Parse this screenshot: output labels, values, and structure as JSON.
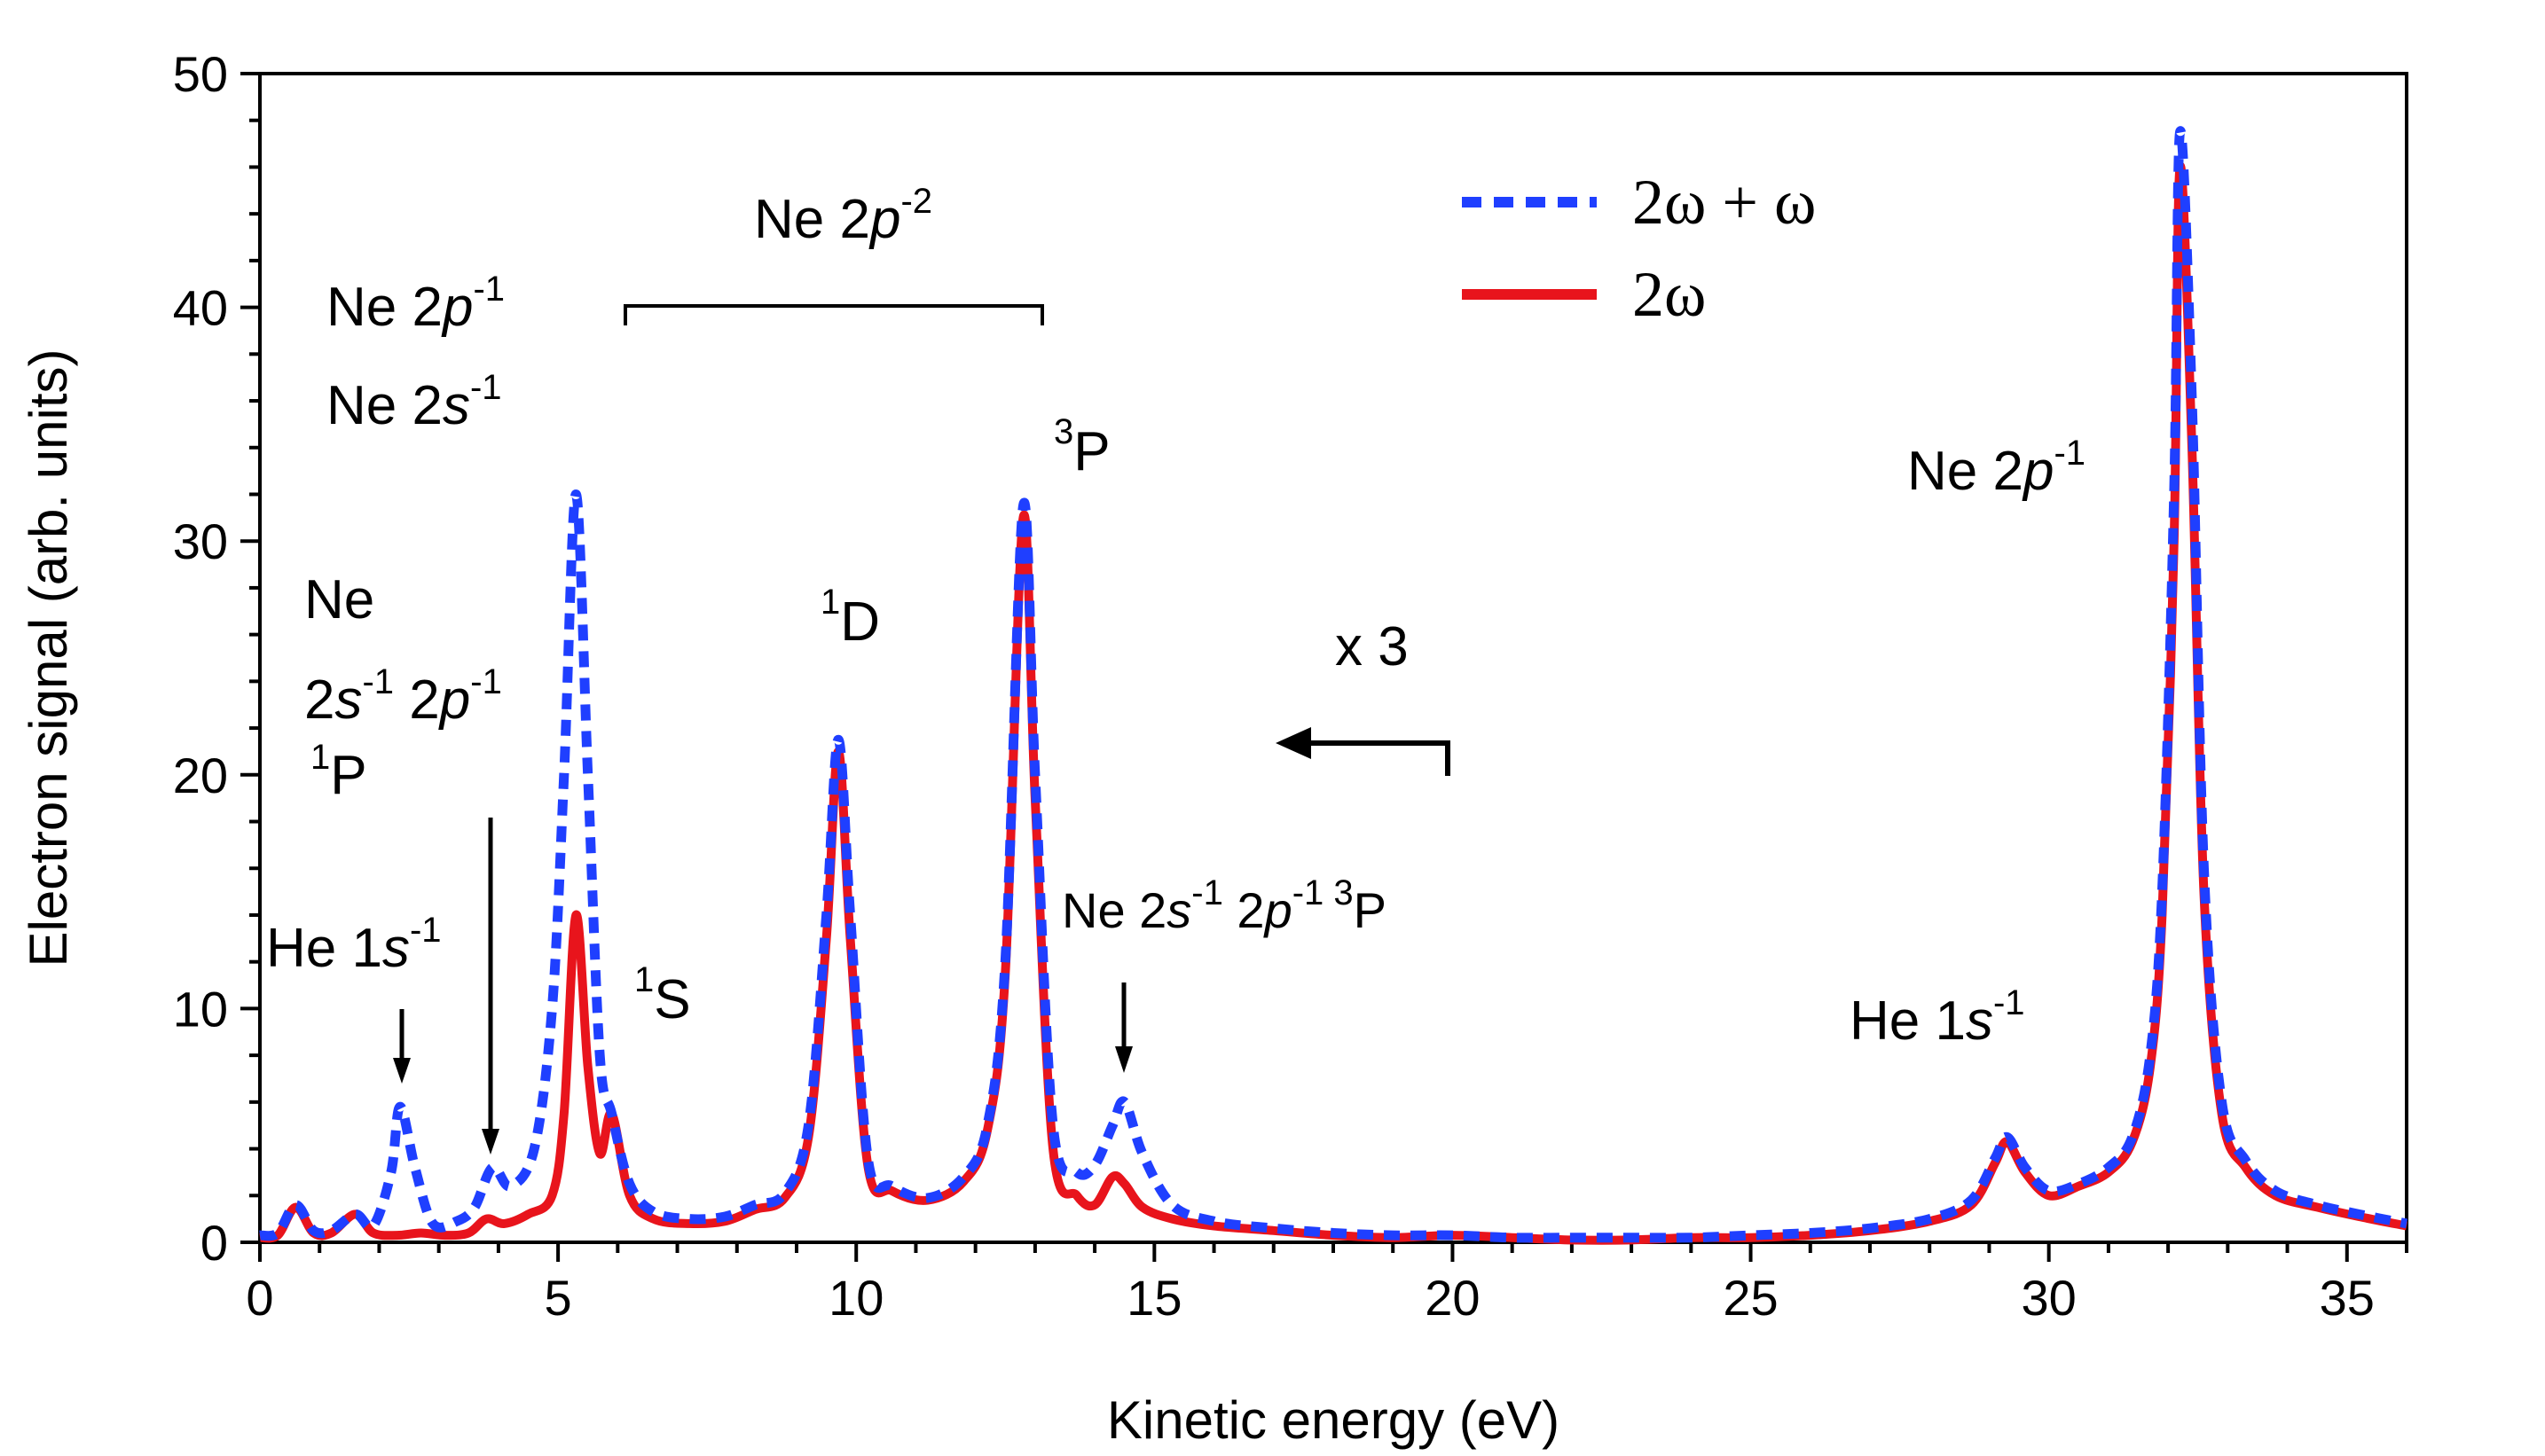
{
  "chart_data": {
    "type": "line",
    "title": "",
    "xlabel": "Kinetic energy (eV)",
    "ylabel": "Electron signal (arb. units)",
    "xlim": [
      0,
      36
    ],
    "ylim": [
      0,
      50
    ],
    "xticks": [
      0,
      5,
      10,
      15,
      20,
      25,
      30,
      35
    ],
    "yticks": [
      0,
      10,
      20,
      30,
      40,
      50
    ],
    "grid": false,
    "legend_position": "top-right",
    "series": [
      {
        "name": "2ω + ω",
        "color": "#1f3fff",
        "style": "dashed",
        "x": [
          0,
          0.3,
          0.6,
          0.9,
          1.2,
          1.6,
          1.9,
          2.2,
          2.35,
          2.6,
          2.9,
          3.3,
          3.6,
          3.9,
          4.2,
          4.6,
          4.9,
          5.1,
          5.3,
          5.5,
          5.7,
          5.9,
          6.2,
          6.6,
          7.2,
          7.8,
          8.3,
          8.8,
          9.2,
          9.5,
          9.7,
          9.9,
          10.2,
          10.6,
          11.2,
          11.8,
          12.2,
          12.5,
          12.8,
          13.0,
          13.3,
          13.7,
          14.0,
          14.3,
          14.5,
          14.8,
          15.3,
          16.0,
          17.0,
          18.0,
          19.0,
          20.0,
          21.0,
          22.0,
          23.0,
          24.0,
          25.0,
          26.0,
          27.0,
          28.0,
          28.7,
          29.1,
          29.3,
          29.6,
          30.0,
          30.5,
          31.0,
          31.4,
          31.7,
          31.9,
          32.1,
          32.2,
          32.4,
          32.6,
          32.9,
          33.3,
          33.8,
          34.5,
          35.2,
          36.0
        ],
        "y": [
          0.3,
          0.4,
          1.6,
          0.5,
          0.5,
          1.2,
          0.7,
          3.0,
          5.8,
          3.2,
          0.8,
          0.9,
          1.5,
          3.2,
          2.4,
          4.0,
          10.0,
          20.0,
          32.0,
          20.0,
          8.0,
          5.5,
          2.5,
          1.3,
          1.0,
          1.1,
          1.6,
          2.1,
          5.0,
          14.0,
          21.5,
          14.0,
          3.5,
          2.4,
          1.9,
          2.8,
          5.0,
          12.0,
          31.5,
          20.0,
          5.0,
          3.0,
          3.3,
          5.0,
          6.0,
          3.8,
          1.6,
          0.9,
          0.6,
          0.4,
          0.3,
          0.3,
          0.2,
          0.2,
          0.2,
          0.2,
          0.3,
          0.4,
          0.6,
          1.0,
          1.8,
          3.6,
          4.5,
          3.2,
          2.2,
          2.5,
          3.2,
          4.5,
          8.0,
          15.0,
          32.0,
          47.5,
          36.0,
          16.0,
          6.0,
          3.5,
          2.2,
          1.6,
          1.2,
          0.8
        ]
      },
      {
        "name": "2ω",
        "color": "#e8141c",
        "style": "solid",
        "x": [
          0,
          0.3,
          0.6,
          0.9,
          1.2,
          1.6,
          1.9,
          2.3,
          2.7,
          3.1,
          3.5,
          3.8,
          4.1,
          4.5,
          4.9,
          5.1,
          5.3,
          5.5,
          5.7,
          5.9,
          6.2,
          6.6,
          7.2,
          7.8,
          8.3,
          8.8,
          9.2,
          9.5,
          9.7,
          9.9,
          10.2,
          10.6,
          11.2,
          11.8,
          12.2,
          12.5,
          12.8,
          13.0,
          13.3,
          13.7,
          14.0,
          14.3,
          14.5,
          14.8,
          15.3,
          16.0,
          17.0,
          18.0,
          19.0,
          20.0,
          21.0,
          22.0,
          23.0,
          24.0,
          25.0,
          26.0,
          27.0,
          28.0,
          28.7,
          29.1,
          29.3,
          29.6,
          30.0,
          30.5,
          31.0,
          31.4,
          31.7,
          31.9,
          32.1,
          32.2,
          32.4,
          32.6,
          32.9,
          33.3,
          33.8,
          34.5,
          35.2,
          36.0
        ],
        "y": [
          0.2,
          0.3,
          1.5,
          0.4,
          0.4,
          1.2,
          0.4,
          0.3,
          0.4,
          0.3,
          0.4,
          1.0,
          0.8,
          1.2,
          2.0,
          5.5,
          14.0,
          7.5,
          3.8,
          5.5,
          2.0,
          1.0,
          0.8,
          0.9,
          1.4,
          1.9,
          4.5,
          13.0,
          21.0,
          13.0,
          3.2,
          2.2,
          1.8,
          2.6,
          4.8,
          11.5,
          31.0,
          19.0,
          4.0,
          2.0,
          1.6,
          2.8,
          2.5,
          1.5,
          1.0,
          0.7,
          0.5,
          0.3,
          0.2,
          0.3,
          0.2,
          0.1,
          0.1,
          0.2,
          0.2,
          0.3,
          0.5,
          0.9,
          1.6,
          3.4,
          4.3,
          3.0,
          2.0,
          2.4,
          3.0,
          4.3,
          7.5,
          14.0,
          30.0,
          46.0,
          34.0,
          15.0,
          5.5,
          3.2,
          2.0,
          1.5,
          1.1,
          0.7
        ]
      }
    ],
    "annotations": {
      "ne2p1_left": {
        "base": "Ne 2",
        "italic": "p",
        "sup": "-1"
      },
      "ne2s1": {
        "base": "Ne 2",
        "italic": "s",
        "sup": "-1"
      },
      "ne2p2_bracket": {
        "base": "Ne 2",
        "italic": "p",
        "sup": "-2"
      },
      "state_3P": {
        "sup": "3",
        "base": "P"
      },
      "state_1D": {
        "sup": "1",
        "base": "D"
      },
      "state_1S": {
        "sup": "1",
        "base": "S"
      },
      "ne_satellite": {
        "line1": "Ne",
        "line2a": "2",
        "line2b": "s",
        "line2c": "-1",
        "line2d": " 2",
        "line2e": "p",
        "line2f": "-1",
        "line3sup": "1",
        "line3": "P"
      },
      "he1s_left": {
        "base": "He 1",
        "italic": "s",
        "sup": "-1"
      },
      "ne_sat_3P": {
        "a": "Ne 2",
        "b": "s",
        "c": "-1",
        "d": " 2",
        "e": "p",
        "f": "-1",
        "g": " 3",
        "h": "P"
      },
      "he1s_right": {
        "base": "He 1",
        "italic": "s",
        "sup": "-1"
      },
      "ne2p1_right": {
        "base": "Ne 2",
        "italic": "p",
        "sup": "-1"
      },
      "scale_factor": "x 3"
    }
  },
  "legend": {
    "items": [
      {
        "label": "2ω + ω"
      },
      {
        "label": "2ω"
      }
    ]
  }
}
